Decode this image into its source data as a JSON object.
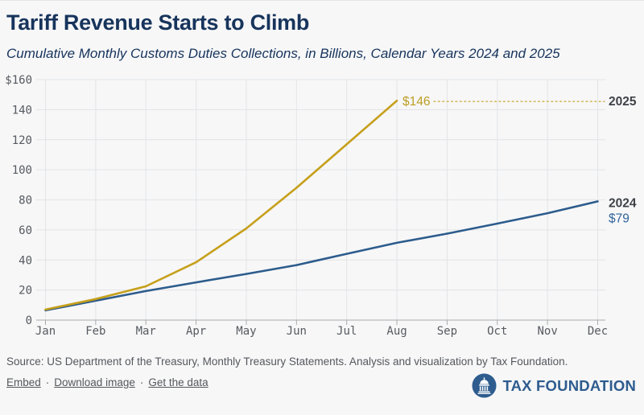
{
  "header": {
    "title": "Tariff Revenue Starts to Climb",
    "subtitle": "Cumulative Monthly Customs Duties Collections, in Billions, Calendar Years 2024 and 2025"
  },
  "chart_data": {
    "type": "line",
    "title": "Tariff Revenue Starts to Climb",
    "subtitle": "Cumulative Monthly Customs Duties Collections, in Billions, Calendar Years 2024 and 2025",
    "unit": "billions of dollars",
    "x_categories": [
      "Jan",
      "Feb",
      "Mar",
      "Apr",
      "May",
      "Jun",
      "Jul",
      "Aug",
      "Sep",
      "Oct",
      "Nov",
      "Dec"
    ],
    "ylim": [
      0,
      160
    ],
    "y_tick_interval": 20,
    "y_tick_labels": [
      "$160",
      "140",
      "120",
      "100",
      "80",
      "60",
      "40",
      "20",
      "0"
    ],
    "grid": true,
    "legend_position": "right-end-labels",
    "series": [
      {
        "name": "2024",
        "color": "#2d5c8c",
        "value_label_color": "#2f6399",
        "values": [
          6.5,
          12.9,
          19.3,
          25.1,
          30.7,
          36.6,
          44.1,
          51.4,
          57.5,
          64.2,
          71.1,
          79
        ],
        "end_label": "2024",
        "end_value_label": "$79"
      },
      {
        "name": "2025",
        "color": "#c6a01b",
        "value_label_color": "#bd9e22",
        "leader_color": "#d2b554",
        "values": [
          7,
          14,
          22.5,
          38.5,
          61,
          88,
          117,
          146
        ],
        "end_label": "2025",
        "end_value_label": "$146",
        "leader_line": "dotted"
      }
    ]
  },
  "footer": {
    "source": "Source: US Department of the Treasury, Monthly Treasury Statements. Analysis and visualization by Tax Foundation.",
    "links": [
      "Embed",
      "Download image",
      "Get the data"
    ],
    "separator": "·",
    "logo_text": "TAX FOUNDATION",
    "logo_color": "#2e5c8e"
  }
}
